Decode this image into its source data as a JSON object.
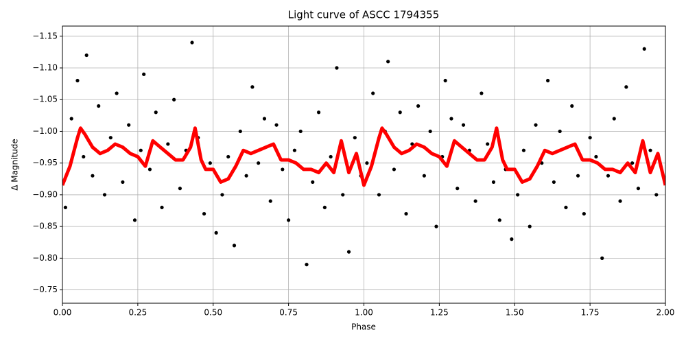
{
  "chart_data": {
    "type": "scatter",
    "title": "Light curve of ASCC 1794355",
    "xlabel": "Phase",
    "ylabel": "Δ Magnitude",
    "xlim": [
      0,
      2
    ],
    "ylim": [
      -0.729,
      -1.166
    ],
    "grid": true,
    "xticks": [
      {
        "value": 0,
        "label": "0.00"
      },
      {
        "value": 0.25,
        "label": "0.25"
      },
      {
        "value": 0.5,
        "label": "0.50"
      },
      {
        "value": 0.75,
        "label": "0.75"
      },
      {
        "value": 1,
        "label": "1.00"
      },
      {
        "value": 1.25,
        "label": "1.25"
      },
      {
        "value": 1.5,
        "label": "1.50"
      },
      {
        "value": 1.75,
        "label": "1.75"
      },
      {
        "value": 2,
        "label": "2.00"
      }
    ],
    "yticks": [
      {
        "value": -1.15,
        "label": "−1.15"
      },
      {
        "value": -1.1,
        "label": "−1.10"
      },
      {
        "value": -1.05,
        "label": "−1.05"
      },
      {
        "value": -1,
        "label": "−1.00"
      },
      {
        "value": -0.95,
        "label": "−0.95"
      },
      {
        "value": -0.9,
        "label": "−0.90"
      },
      {
        "value": -0.85,
        "label": "−0.85"
      },
      {
        "value": -0.8,
        "label": "−0.80"
      },
      {
        "value": -0.75,
        "label": "−0.75"
      }
    ],
    "series": [
      {
        "type": "scatter",
        "color": "#000000",
        "x": [
          0.01,
          0.03,
          0.05,
          0.07,
          0.08,
          0.1,
          0.12,
          0.14,
          0.16,
          0.18,
          0.2,
          0.22,
          0.24,
          0.26,
          0.27,
          0.29,
          0.31,
          0.33,
          0.35,
          0.37,
          0.39,
          0.41,
          0.43,
          0.45,
          0.47,
          0.49,
          0.51,
          0.53,
          0.55,
          0.57,
          0.59,
          0.61,
          0.63,
          0.65,
          0.67,
          0.69,
          0.71,
          0.73,
          0.75,
          0.77,
          0.79,
          0.81,
          0.83,
          0.85,
          0.87,
          0.89,
          0.91,
          0.93,
          0.95,
          0.97,
          0.99,
          1.01,
          1.03,
          1.05,
          1.07,
          1.08,
          1.1,
          1.12,
          1.14,
          1.16,
          1.18,
          1.2,
          1.22,
          1.24,
          1.26,
          1.27,
          1.29,
          1.31,
          1.33,
          1.35,
          1.37,
          1.39,
          1.41,
          1.43,
          1.45,
          1.47,
          1.49,
          1.51,
          1.53,
          1.55,
          1.57,
          1.59,
          1.61,
          1.63,
          1.65,
          1.67,
          1.69,
          1.71,
          1.73,
          1.75,
          1.77,
          1.79,
          1.81,
          1.83,
          1.85,
          1.87,
          1.89,
          1.91,
          1.93,
          1.95,
          1.97
        ],
        "values": [
          -0.88,
          -1.02,
          -1.08,
          -0.96,
          -1.12,
          -0.93,
          -1.04,
          -0.9,
          -0.99,
          -1.06,
          -0.92,
          -1.01,
          -0.86,
          -0.97,
          -1.09,
          -0.94,
          -1.03,
          -0.88,
          -0.98,
          -1.05,
          -0.91,
          -0.97,
          -1.14,
          -0.99,
          -0.87,
          -0.95,
          -0.84,
          -0.9,
          -0.96,
          -0.82,
          -1.0,
          -0.93,
          -1.07,
          -0.95,
          -1.02,
          -0.89,
          -1.01,
          -0.94,
          -0.86,
          -0.97,
          -1.0,
          -0.79,
          -0.92,
          -1.03,
          -0.88,
          -0.96,
          -1.1,
          -0.9,
          -0.81,
          -0.99,
          -0.93,
          -0.95,
          -1.06,
          -0.9,
          -1.0,
          -1.11,
          -0.94,
          -1.03,
          -0.87,
          -0.98,
          -1.04,
          -0.93,
          -1.0,
          -0.85,
          -0.96,
          -1.08,
          -1.02,
          -0.91,
          -1.01,
          -0.97,
          -0.89,
          -1.06,
          -0.98,
          -0.92,
          -0.86,
          -0.94,
          -0.83,
          -0.9,
          -0.97,
          -0.85,
          -1.01,
          -0.95,
          -1.08,
          -0.92,
          -1.0,
          -0.88,
          -1.04,
          -0.93,
          -0.87,
          -0.99,
          -0.96,
          -0.8,
          -0.93,
          -1.02,
          -0.89,
          -1.07,
          -0.95,
          -0.91,
          -1.13,
          -0.97,
          -0.9
        ]
      },
      {
        "type": "line",
        "color": "#ff0000",
        "x": [
          0,
          0.025,
          0.05,
          0.06,
          0.075,
          0.1,
          0.125,
          0.15,
          0.175,
          0.2,
          0.225,
          0.25,
          0.275,
          0.3,
          0.325,
          0.35,
          0.375,
          0.4,
          0.425,
          0.44,
          0.46,
          0.475,
          0.5,
          0.525,
          0.55,
          0.575,
          0.6,
          0.625,
          0.65,
          0.675,
          0.7,
          0.725,
          0.75,
          0.775,
          0.8,
          0.825,
          0.85,
          0.875,
          0.9,
          0.925,
          0.95,
          0.975,
          1,
          1.025,
          1.05,
          1.06,
          1.075,
          1.1,
          1.125,
          1.15,
          1.175,
          1.2,
          1.225,
          1.25,
          1.275,
          1.3,
          1.325,
          1.35,
          1.375,
          1.4,
          1.425,
          1.44,
          1.46,
          1.475,
          1.5,
          1.525,
          1.55,
          1.575,
          1.6,
          1.625,
          1.65,
          1.675,
          1.7,
          1.725,
          1.75,
          1.775,
          1.8,
          1.825,
          1.85,
          1.875,
          1.9,
          1.925,
          1.95,
          1.975,
          2
        ],
        "values": [
          -0.915,
          -0.945,
          -0.99,
          -1.005,
          -0.995,
          -0.975,
          -0.965,
          -0.97,
          -0.98,
          -0.975,
          -0.965,
          -0.96,
          -0.945,
          -0.985,
          -0.975,
          -0.965,
          -0.955,
          -0.955,
          -0.975,
          -1.005,
          -0.955,
          -0.94,
          -0.94,
          -0.92,
          -0.925,
          -0.945,
          -0.97,
          -0.965,
          -0.97,
          -0.975,
          -0.98,
          -0.955,
          -0.955,
          -0.95,
          -0.94,
          -0.94,
          -0.935,
          -0.95,
          -0.935,
          -0.985,
          -0.935,
          -0.965,
          -0.915,
          -0.945,
          -0.99,
          -1.005,
          -0.995,
          -0.975,
          -0.965,
          -0.97,
          -0.98,
          -0.975,
          -0.965,
          -0.96,
          -0.945,
          -0.985,
          -0.975,
          -0.965,
          -0.955,
          -0.955,
          -0.975,
          -1.005,
          -0.955,
          -0.94,
          -0.94,
          -0.92,
          -0.925,
          -0.945,
          -0.97,
          -0.965,
          -0.97,
          -0.975,
          -0.98,
          -0.955,
          -0.955,
          -0.95,
          -0.94,
          -0.94,
          -0.935,
          -0.95,
          -0.935,
          -0.985,
          -0.935,
          -0.965,
          -0.915
        ]
      }
    ]
  }
}
